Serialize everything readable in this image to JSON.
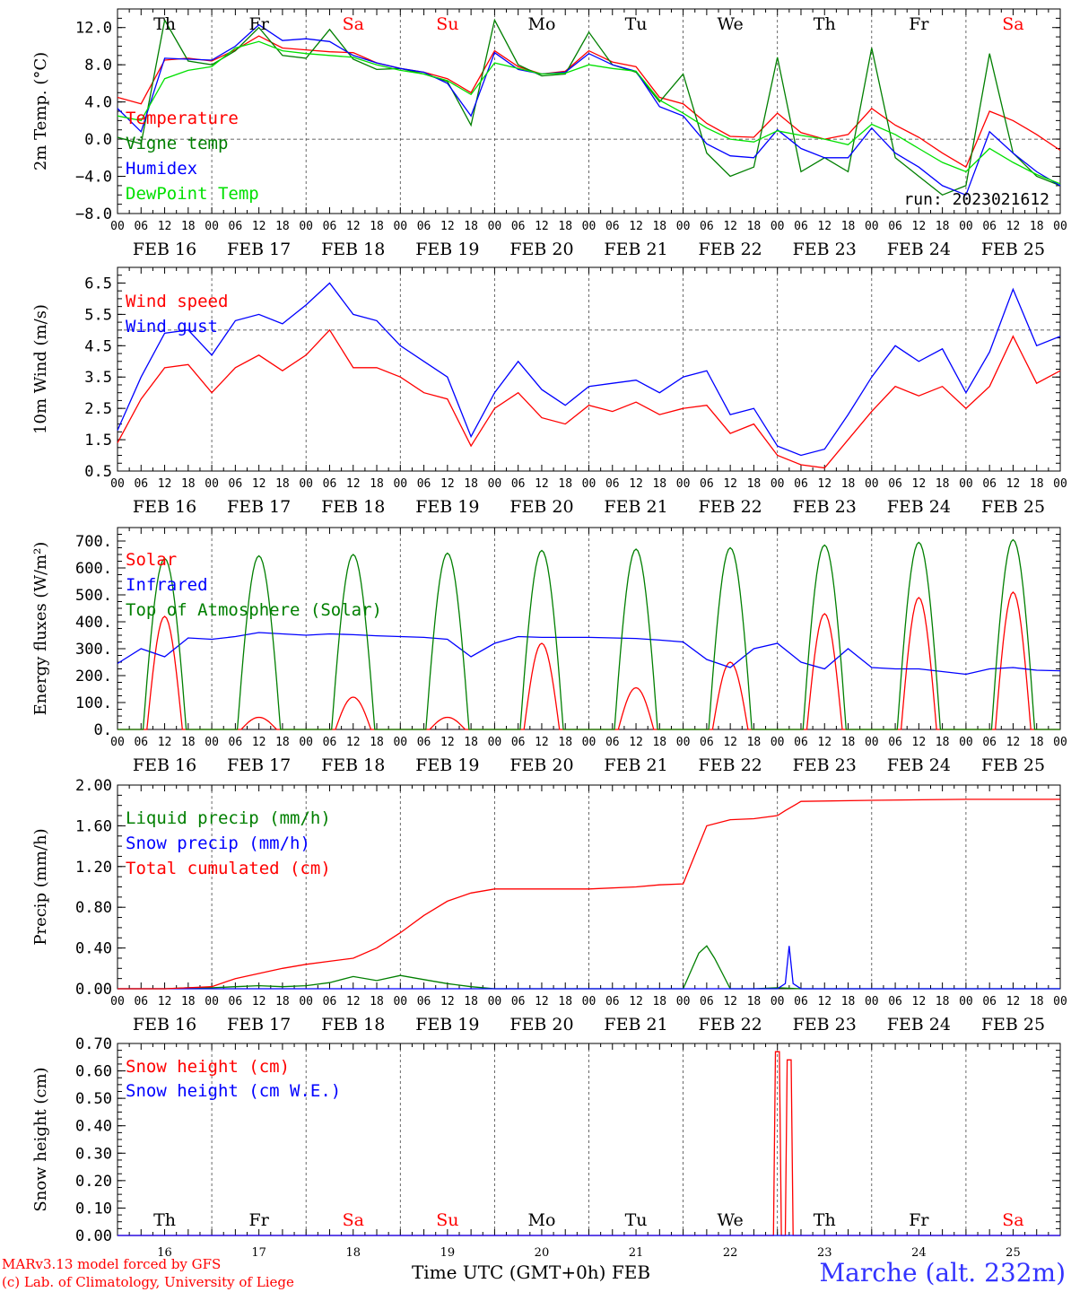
{
  "footer": {
    "credit_1": "MARv3.13 model forced by GFS",
    "credit_2": "(c) Lab. of Climatology, University of Liege",
    "xlabel": "Time UTC (GMT+0h) FEB",
    "station": "Marche (alt. 232m)"
  },
  "colors": {
    "red": "#ff0000",
    "green": "#007f00",
    "blue": "#0000ff",
    "lightgreen": "#00e000",
    "station": "#3333ff"
  },
  "days_top": [
    "Th",
    "Fr",
    "Sa",
    "Su",
    "Mo",
    "Tu",
    "We",
    "Th",
    "Fr",
    "Sa"
  ],
  "days_top_weekend": [
    false,
    false,
    true,
    true,
    false,
    false,
    false,
    false,
    false,
    true
  ],
  "dates": [
    "FEB 16",
    "FEB 17",
    "FEB 18",
    "FEB 19",
    "FEB 20",
    "FEB 21",
    "FEB 22",
    "FEB 23",
    "FEB 24",
    "FEB 25"
  ],
  "day_numbers": [
    "16",
    "17",
    "18",
    "19",
    "20",
    "21",
    "22",
    "23",
    "24",
    "25"
  ],
  "hour_ticks": [
    "00",
    "06",
    "12",
    "18"
  ],
  "last_tick": "00",
  "chart_data": [
    {
      "type": "line",
      "ylabel": "2m Temp. (°C)",
      "ylim": [
        -8,
        14
      ],
      "yticks": [
        "12.0",
        "8.0",
        "4.0",
        "0.0",
        "−4.0",
        "−8.0"
      ],
      "ytick_values": [
        12,
        8,
        4,
        0,
        -4,
        -8
      ],
      "ref_line": 0,
      "annotation": "run: 2023021612",
      "x_unit": "hours since 2023-02-16 00 UTC",
      "series": [
        {
          "name": "Temperature",
          "color": "#ff0000",
          "x": [
            0,
            6,
            12,
            18,
            24,
            30,
            36,
            42,
            48,
            54,
            60,
            66,
            72,
            78,
            84,
            90,
            96,
            102,
            108,
            114,
            120,
            126,
            132,
            138,
            144,
            150,
            156,
            162,
            168,
            174,
            180,
            186,
            192,
            198,
            204,
            210,
            216,
            222,
            228,
            234,
            240
          ],
          "y": [
            4.5,
            3.8,
            8.5,
            8.7,
            8.4,
            9.6,
            11.1,
            9.8,
            9.6,
            9.4,
            9.3,
            8.2,
            7.6,
            7.2,
            6.5,
            5.0,
            9.5,
            7.8,
            7.0,
            7.3,
            9.5,
            8.3,
            7.8,
            4.5,
            3.8,
            1.7,
            0.3,
            0.2,
            2.8,
            0.7,
            0.0,
            0.5,
            3.3,
            1.5,
            0.2,
            -1.5,
            -3.0,
            3.0,
            2.0,
            0.5,
            -1.2
          ]
        },
        {
          "name": "Vigne temp",
          "color": "#007f00",
          "x": [
            0,
            6,
            12,
            18,
            24,
            30,
            36,
            42,
            48,
            54,
            60,
            66,
            72,
            78,
            84,
            90,
            96,
            102,
            108,
            114,
            120,
            126,
            132,
            138,
            144,
            150,
            156,
            162,
            168,
            174,
            180,
            186,
            192,
            198,
            204,
            210,
            216,
            222,
            228,
            234,
            240
          ],
          "y": [
            0.2,
            -0.5,
            12.8,
            8.4,
            8.0,
            9.5,
            12.0,
            9.0,
            8.7,
            11.8,
            8.6,
            7.5,
            7.6,
            7.0,
            6.2,
            1.5,
            12.8,
            8.0,
            6.8,
            7.0,
            11.5,
            8.0,
            7.2,
            4.0,
            7.0,
            -1.5,
            -4.0,
            -3.0,
            8.8,
            -3.5,
            -2.0,
            -3.5,
            9.8,
            -2.0,
            -4.0,
            -6.0,
            -5.0,
            9.2,
            -1.5,
            -4.0,
            -5.0
          ]
        },
        {
          "name": "Humidex",
          "color": "#0000ff",
          "x": [
            0,
            6,
            12,
            18,
            24,
            30,
            36,
            42,
            48,
            54,
            60,
            66,
            72,
            78,
            84,
            90,
            96,
            102,
            108,
            114,
            120,
            126,
            132,
            138,
            144,
            150,
            156,
            162,
            168,
            174,
            180,
            186,
            192,
            198,
            204,
            210,
            216,
            222,
            228,
            234,
            240
          ],
          "y": [
            3.3,
            0.8,
            8.7,
            8.6,
            8.5,
            10.0,
            12.3,
            10.6,
            10.8,
            10.5,
            9.0,
            8.2,
            7.6,
            7.2,
            6.0,
            2.5,
            9.3,
            7.5,
            7.0,
            7.2,
            9.2,
            8.0,
            7.3,
            3.5,
            2.5,
            -0.5,
            -1.8,
            -2.0,
            1.0,
            -1.0,
            -2.0,
            -2.0,
            1.2,
            -1.5,
            -3.0,
            -5.0,
            -6.0,
            0.8,
            -1.5,
            -3.5,
            -5.0
          ]
        },
        {
          "name": "DewPoint Temp",
          "color": "#00e000",
          "x": [
            0,
            6,
            12,
            18,
            24,
            30,
            36,
            42,
            48,
            54,
            60,
            66,
            72,
            78,
            84,
            90,
            96,
            102,
            108,
            114,
            120,
            126,
            132,
            138,
            144,
            150,
            156,
            162,
            168,
            174,
            180,
            186,
            192,
            198,
            204,
            210,
            216,
            222,
            228,
            234,
            240
          ],
          "y": [
            2.5,
            2.0,
            6.5,
            7.4,
            7.8,
            9.8,
            10.5,
            9.5,
            9.2,
            9.0,
            8.8,
            8.0,
            7.4,
            7.0,
            6.3,
            4.8,
            8.2,
            7.6,
            7.0,
            7.1,
            8.0,
            7.6,
            7.3,
            4.2,
            2.8,
            1.2,
            0.0,
            -0.3,
            0.9,
            0.4,
            0.0,
            -0.6,
            1.6,
            0.5,
            -1.0,
            -2.5,
            -3.5,
            -1.0,
            -2.5,
            -3.8,
            -4.8
          ]
        }
      ]
    },
    {
      "type": "line",
      "ylabel": "10m Wind (m/s)",
      "ylim": [
        0.5,
        7.0
      ],
      "yticks": [
        "6.5",
        "5.5",
        "4.5",
        "3.5",
        "2.5",
        "1.5",
        "0.5"
      ],
      "ytick_values": [
        6.5,
        5.5,
        4.5,
        3.5,
        2.5,
        1.5,
        0.5
      ],
      "ref_line": 5.0,
      "x_unit": "hours since 2023-02-16 00 UTC",
      "series": [
        {
          "name": "Wind speed",
          "color": "#ff0000",
          "x": [
            0,
            6,
            12,
            18,
            24,
            30,
            36,
            42,
            48,
            54,
            60,
            66,
            72,
            78,
            84,
            90,
            96,
            102,
            108,
            114,
            120,
            126,
            132,
            138,
            144,
            150,
            156,
            162,
            168,
            174,
            180,
            186,
            192,
            198,
            204,
            210,
            216,
            222,
            228,
            234,
            240
          ],
          "y": [
            1.4,
            2.8,
            3.8,
            3.9,
            3.0,
            3.8,
            4.2,
            3.7,
            4.2,
            5.0,
            3.8,
            3.8,
            3.5,
            3.0,
            2.8,
            1.3,
            2.5,
            3.0,
            2.2,
            2.0,
            2.6,
            2.4,
            2.7,
            2.3,
            2.5,
            2.6,
            1.7,
            2.0,
            1.0,
            0.7,
            0.6,
            1.5,
            2.4,
            3.2,
            2.9,
            3.2,
            2.5,
            3.2,
            4.8,
            3.3,
            3.7
          ]
        },
        {
          "name": "Wind gust",
          "color": "#0000ff",
          "x": [
            0,
            6,
            12,
            18,
            24,
            30,
            36,
            42,
            48,
            54,
            60,
            66,
            72,
            78,
            84,
            90,
            96,
            102,
            108,
            114,
            120,
            126,
            132,
            138,
            144,
            150,
            156,
            162,
            168,
            174,
            180,
            186,
            192,
            198,
            204,
            210,
            216,
            222,
            228,
            234,
            240
          ],
          "y": [
            1.8,
            3.5,
            4.9,
            5.0,
            4.2,
            5.3,
            5.5,
            5.2,
            5.8,
            6.5,
            5.5,
            5.3,
            4.5,
            4.0,
            3.5,
            1.6,
            3.0,
            4.0,
            3.1,
            2.6,
            3.2,
            3.3,
            3.4,
            3.0,
            3.5,
            3.7,
            2.3,
            2.5,
            1.3,
            1.0,
            1.2,
            2.3,
            3.5,
            4.5,
            4.0,
            4.4,
            3.0,
            4.3,
            6.3,
            4.5,
            4.8
          ]
        }
      ]
    },
    {
      "type": "line",
      "ylabel": "Energy fluxes (W/m²)",
      "ylim": [
        0,
        750
      ],
      "yticks": [
        "700.",
        "600.",
        "500.",
        "400.",
        "300.",
        "200.",
        "100.",
        "0."
      ],
      "ytick_values": [
        700,
        600,
        500,
        400,
        300,
        200,
        100,
        0
      ],
      "x_unit": "hours since 2023-02-16 00 UTC",
      "series": [
        {
          "name": "Solar",
          "color": "#ff0000",
          "daily_peaks": [
            420,
            45,
            120,
            45,
            320,
            155,
            250,
            430,
            490,
            510
          ]
        },
        {
          "name": "Infrared",
          "color": "#0000ff",
          "x": [
            0,
            6,
            12,
            18,
            24,
            30,
            36,
            42,
            48,
            54,
            60,
            66,
            72,
            78,
            84,
            90,
            96,
            102,
            108,
            114,
            120,
            126,
            132,
            138,
            144,
            150,
            156,
            162,
            168,
            174,
            180,
            186,
            192,
            198,
            204,
            210,
            216,
            222,
            228,
            234,
            240
          ],
          "y": [
            245,
            300,
            270,
            340,
            335,
            345,
            360,
            355,
            350,
            355,
            352,
            348,
            345,
            342,
            335,
            270,
            320,
            345,
            342,
            342,
            342,
            340,
            338,
            332,
            325,
            260,
            230,
            300,
            320,
            250,
            225,
            300,
            230,
            225,
            225,
            215,
            205,
            225,
            230,
            220,
            218
          ]
        },
        {
          "name": "Top of Atmosphere (Solar)",
          "color": "#007f00",
          "daily_peaks": [
            635,
            645,
            650,
            655,
            665,
            670,
            675,
            685,
            695,
            705
          ]
        }
      ]
    },
    {
      "type": "line",
      "ylabel": "Precip (mm/h)",
      "ylim": [
        0,
        2.0
      ],
      "yticks": [
        "2.00",
        "1.60",
        "1.20",
        "0.80",
        "0.40",
        "0.00"
      ],
      "ytick_values": [
        2.0,
        1.6,
        1.2,
        0.8,
        0.4,
        0.0
      ],
      "x_unit": "hours since 2023-02-16 00 UTC",
      "series": [
        {
          "name": "Liquid precip (mm/h)",
          "color": "#007f00",
          "x": [
            0,
            12,
            18,
            24,
            30,
            36,
            42,
            48,
            54,
            60,
            66,
            72,
            78,
            84,
            90,
            96,
            144,
            148,
            150,
            152,
            154,
            156,
            162,
            168,
            174,
            240
          ],
          "y": [
            0,
            0,
            0.01,
            0.01,
            0.02,
            0.03,
            0.02,
            0.03,
            0.06,
            0.12,
            0.08,
            0.13,
            0.09,
            0.05,
            0.02,
            0,
            0,
            0.35,
            0.42,
            0.3,
            0.15,
            0,
            0,
            0.01,
            0,
            0
          ]
        },
        {
          "name": "Snow precip (mm/h)",
          "color": "#0000ff",
          "x": [
            0,
            168,
            170,
            171,
            172,
            174,
            240
          ],
          "y": [
            0,
            0,
            0.05,
            0.42,
            0.05,
            0,
            0
          ]
        },
        {
          "name": "Total cumulated (cm)",
          "color": "#ff0000",
          "x": [
            0,
            12,
            18,
            24,
            30,
            36,
            42,
            48,
            54,
            60,
            66,
            72,
            78,
            84,
            90,
            96,
            108,
            120,
            132,
            138,
            144,
            150,
            156,
            162,
            168,
            170,
            174,
            192,
            216,
            240
          ],
          "y": [
            0,
            0,
            0.01,
            0.02,
            0.1,
            0.15,
            0.2,
            0.24,
            0.27,
            0.3,
            0.4,
            0.55,
            0.72,
            0.86,
            0.94,
            0.98,
            0.98,
            0.98,
            1.0,
            1.02,
            1.03,
            1.6,
            1.66,
            1.67,
            1.7,
            1.75,
            1.84,
            1.85,
            1.86,
            1.86
          ]
        }
      ]
    },
    {
      "type": "line",
      "ylabel": "Snow height (cm)",
      "ylim": [
        0,
        0.7
      ],
      "yticks": [
        "0.70",
        "0.60",
        "0.50",
        "0.40",
        "0.30",
        "0.20",
        "0.10",
        "0.00"
      ],
      "ytick_values": [
        0.7,
        0.6,
        0.5,
        0.4,
        0.3,
        0.2,
        0.1,
        0.0
      ],
      "x_unit": "hours since 2023-02-16 00 UTC",
      "series": [
        {
          "name": "Snow height (cm)",
          "color": "#ff0000",
          "x": [
            0,
            167,
            167.5,
            168.5,
            169,
            170,
            170.5,
            171.5,
            172,
            240
          ],
          "y": [
            0,
            0,
            0.67,
            0.67,
            0,
            0,
            0.64,
            0.64,
            0,
            0
          ]
        },
        {
          "name": "Snow height (cm W.E.)",
          "color": "#0000ff",
          "x": [
            0,
            240
          ],
          "y": [
            0,
            0
          ]
        }
      ]
    }
  ]
}
